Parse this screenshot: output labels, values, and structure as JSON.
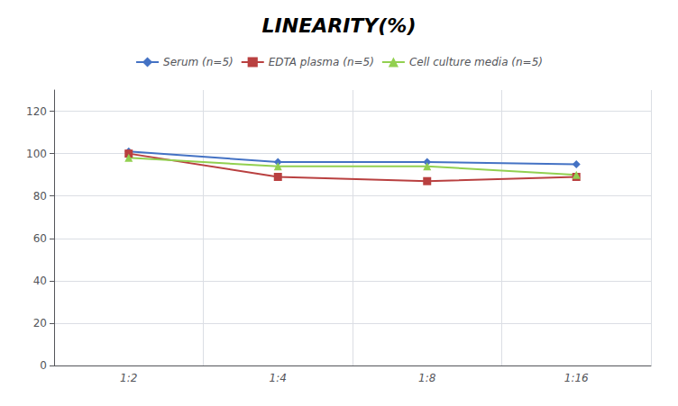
{
  "chart_data": {
    "type": "line",
    "title": "LINEARITY(%)",
    "categories": [
      "1:2",
      "1:4",
      "1:8",
      "1:16"
    ],
    "series": [
      {
        "name": "Serum (n=5)",
        "color": "#4472C4",
        "marker": "diamond",
        "line_style": "solid",
        "values": [
          101,
          96,
          96,
          95
        ]
      },
      {
        "name": "EDTA plasma (n=5)",
        "color": "#B94040",
        "marker": "square",
        "line_style": "solid",
        "values": [
          100,
          89,
          87,
          89
        ]
      },
      {
        "name": "Cell culture media (n=5)",
        "color": "#92D050",
        "marker": "triangle",
        "line_style": "solid",
        "values": [
          98,
          94,
          94,
          90
        ]
      }
    ],
    "ylim": [
      0,
      130
    ],
    "yticks": [
      0,
      20,
      40,
      60,
      80,
      100,
      120
    ],
    "grid": true,
    "legend": "top"
  }
}
